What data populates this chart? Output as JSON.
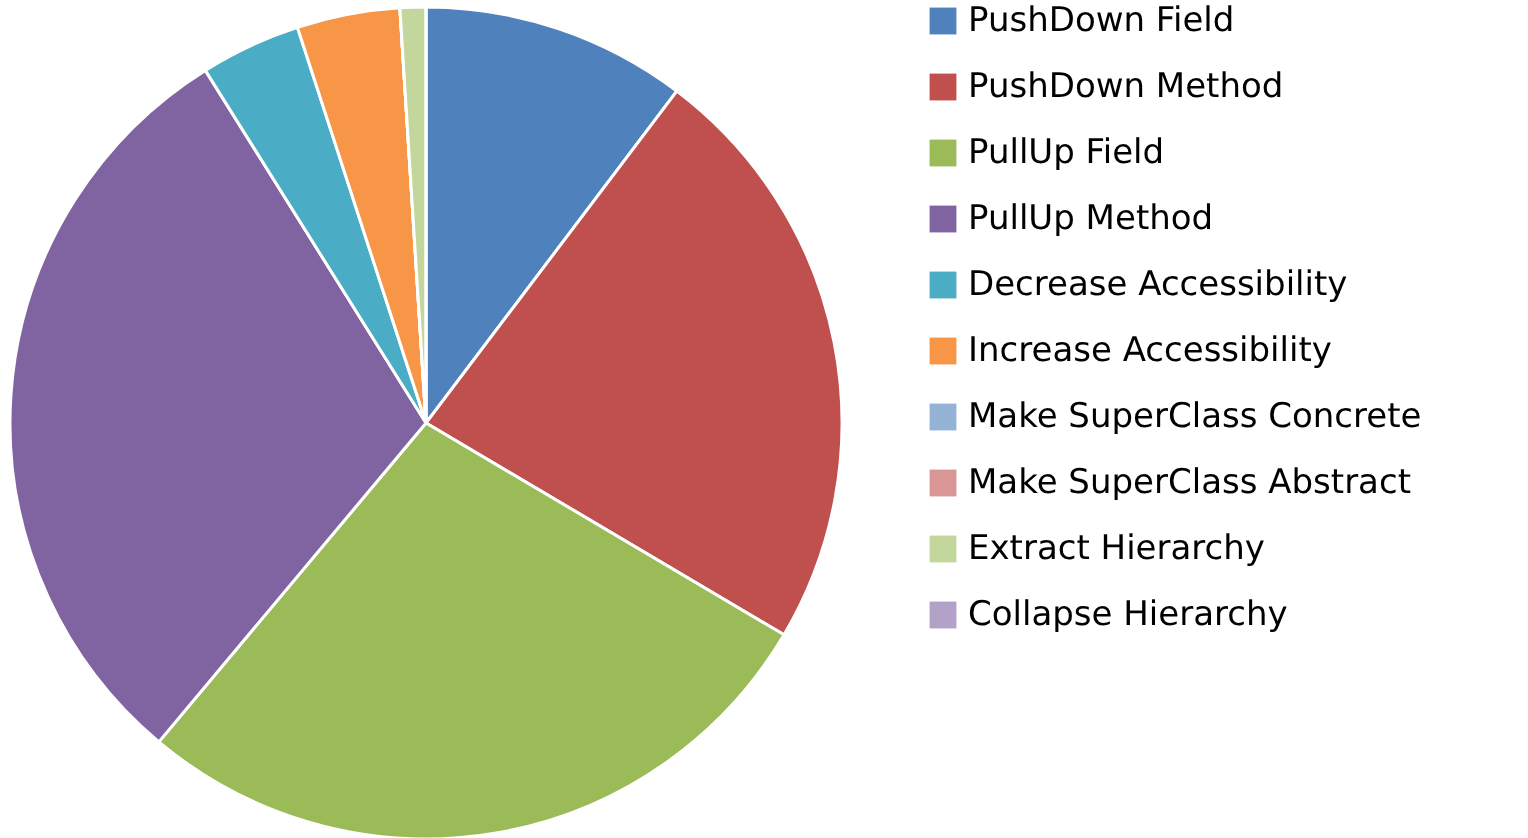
{
  "chart_data": {
    "type": "pie",
    "categories": [
      "PushDown Field",
      "PushDown Method",
      "PullUp Field",
      "PullUp Method",
      "Decrease Accessibility",
      "Increase Accessibility",
      "Make SuperClass Concrete",
      "Make SuperClass Abstract",
      "Extract Hierarchy",
      "Collapse Hierarchy"
    ],
    "values": [
      10.3,
      23.2,
      27.6,
      30.0,
      3.9,
      4.0,
      0,
      0,
      1.0,
      0
    ],
    "colors": [
      "#4f81bd",
      "#c0504d",
      "#9bbb59",
      "#8064a2",
      "#4bacc6",
      "#f79646",
      "#95b3d7",
      "#d99694",
      "#c3d69b",
      "#b3a2c7"
    ],
    "legend": "right"
  }
}
